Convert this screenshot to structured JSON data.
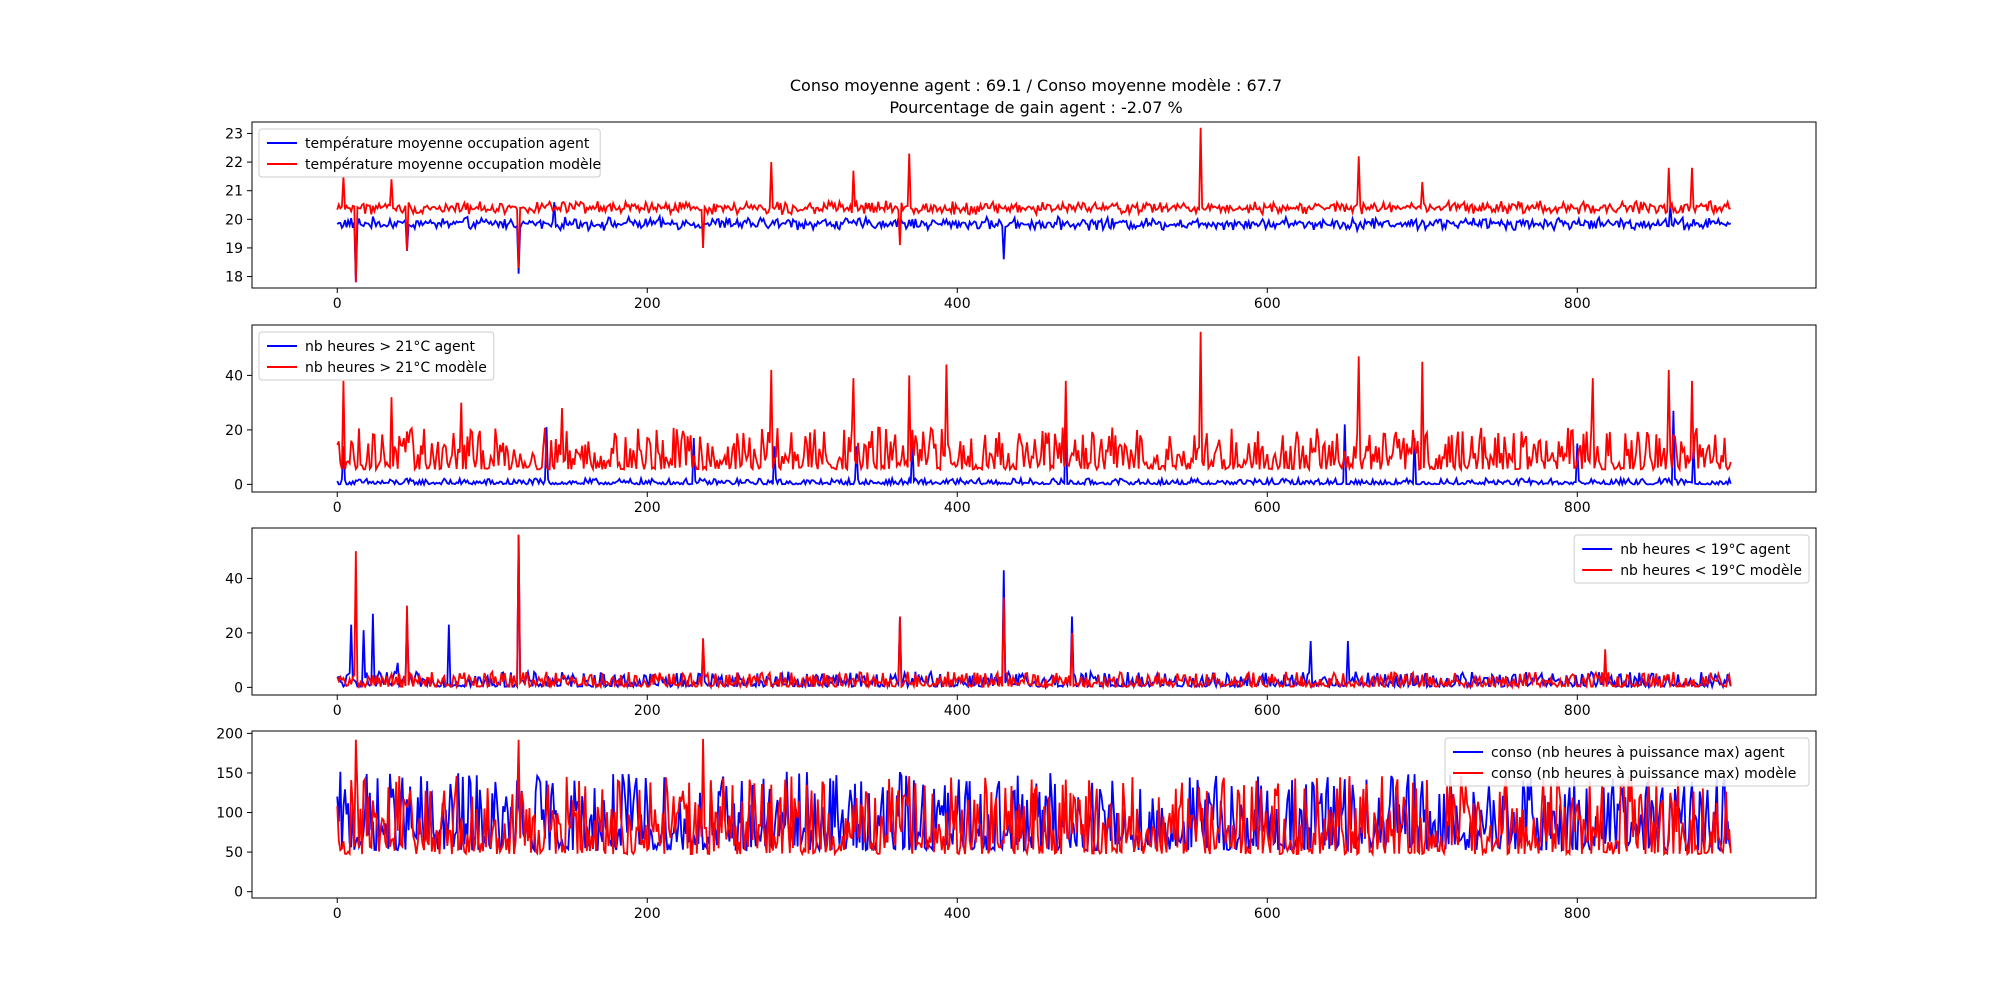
{
  "figure": {
    "title_line1": "Conso moyenne agent : 69.1 / Conso moyenne modèle : 67.7",
    "title_line2": "Pourcentage de gain agent : -2.07 %"
  },
  "colors": {
    "agent": "#0000ff",
    "modele": "#ff0000"
  },
  "chart_data": [
    {
      "type": "line",
      "x_range": [
        0,
        899
      ],
      "xlim": [
        -55,
        954
      ],
      "ylim": [
        17.6,
        23.4
      ],
      "xticks": [
        0,
        200,
        400,
        600,
        800
      ],
      "yticks": [
        18,
        19,
        20,
        21,
        22,
        23
      ],
      "legend_position": "upper-left",
      "series": [
        {
          "name": "température moyenne occupation agent",
          "color": "#0000ff",
          "base": 19.85,
          "noise": 0.25,
          "spikes": [
            [
              12,
              17.8
            ],
            [
              45,
              18.9
            ],
            [
              117,
              18.1
            ],
            [
              430,
              18.6
            ],
            [
              140,
              20.6
            ],
            [
              860,
              20.5
            ]
          ]
        },
        {
          "name": "température moyenne occupation modèle",
          "color": "#ff0000",
          "base": 20.4,
          "noise": 0.25,
          "spikes": [
            [
              4,
              21.5
            ],
            [
              12,
              17.8
            ],
            [
              35,
              21.4
            ],
            [
              45,
              18.9
            ],
            [
              117,
              18.3
            ],
            [
              236,
              19.0
            ],
            [
              280,
              22.0
            ],
            [
              333,
              21.7
            ],
            [
              363,
              19.1
            ],
            [
              369,
              22.3
            ],
            [
              557,
              23.2
            ],
            [
              659,
              22.2
            ],
            [
              700,
              21.3
            ],
            [
              859,
              21.8
            ],
            [
              874,
              21.8
            ]
          ]
        }
      ]
    },
    {
      "type": "line",
      "x_range": [
        0,
        899
      ],
      "xlim": [
        -55,
        954
      ],
      "ylim": [
        -2.8,
        58.5
      ],
      "xticks": [
        0,
        200,
        400,
        600,
        800
      ],
      "yticks": [
        0,
        20,
        40
      ],
      "legend_position": "upper-left",
      "series": [
        {
          "name": "nb heures > 21°C agent",
          "color": "#0000ff",
          "base": 0.5,
          "noise": 1.0,
          "spikes": [
            [
              4,
              14
            ],
            [
              135,
              21
            ],
            [
              230,
              17
            ],
            [
              282,
              14
            ],
            [
              335,
              14
            ],
            [
              371,
              17
            ],
            [
              470,
              22
            ],
            [
              650,
              22
            ],
            [
              695,
              17
            ],
            [
              800,
              15
            ],
            [
              862,
              27
            ],
            [
              875,
              15
            ]
          ]
        },
        {
          "name": "nb heures > 21°C modèle",
          "color": "#ff0000",
          "base": 9,
          "noise": 7,
          "spikes": [
            [
              4,
              38
            ],
            [
              35,
              32
            ],
            [
              80,
              30
            ],
            [
              145,
              28
            ],
            [
              280,
              42
            ],
            [
              333,
              39
            ],
            [
              369,
              40
            ],
            [
              393,
              44
            ],
            [
              470,
              38
            ],
            [
              557,
              56
            ],
            [
              659,
              47
            ],
            [
              700,
              45
            ],
            [
              810,
              39
            ],
            [
              859,
              42
            ],
            [
              874,
              38
            ]
          ]
        }
      ]
    },
    {
      "type": "line",
      "x_range": [
        0,
        899
      ],
      "xlim": [
        -55,
        954
      ],
      "ylim": [
        -2.8,
        58.5
      ],
      "xticks": [
        0,
        200,
        400,
        600,
        800
      ],
      "yticks": [
        0,
        20,
        40
      ],
      "legend_position": "upper-right",
      "series": [
        {
          "name": "nb heures < 19°C agent",
          "color": "#0000ff",
          "base": 1.5,
          "noise": 2.5,
          "spikes": [
            [
              9,
              23
            ],
            [
              17,
              21
            ],
            [
              23,
              27
            ],
            [
              39,
              9
            ],
            [
              45,
              26
            ],
            [
              72,
              23
            ],
            [
              117,
              56
            ],
            [
              236,
              15
            ],
            [
              363,
              26
            ],
            [
              430,
              43
            ],
            [
              474,
              26
            ],
            [
              628,
              17
            ],
            [
              652,
              17
            ]
          ]
        },
        {
          "name": "nb heures < 19°C modèle",
          "color": "#ff0000",
          "base": 1.5,
          "noise": 2.5,
          "spikes": [
            [
              12,
              50
            ],
            [
              45,
              30
            ],
            [
              117,
              56
            ],
            [
              236,
              18
            ],
            [
              363,
              26
            ],
            [
              430,
              33
            ],
            [
              474,
              20
            ],
            [
              818,
              14
            ]
          ]
        }
      ]
    },
    {
      "type": "line",
      "x_range": [
        0,
        899
      ],
      "xlim": [
        -55,
        954
      ],
      "ylim": [
        -8,
        203
      ],
      "xticks": [
        0,
        200,
        400,
        600,
        800
      ],
      "yticks": [
        0,
        50,
        100,
        150,
        200
      ],
      "legend_position": "upper-right",
      "series": [
        {
          "name": "conso (nb heures à puissance max) agent",
          "color": "#0000ff",
          "base": 75,
          "noise": 45,
          "spikes": []
        },
        {
          "name": "conso (nb heures à puissance max) modèle",
          "color": "#ff0000",
          "base": 70,
          "noise": 45,
          "spikes": [
            [
              12,
              192
            ],
            [
              117,
              192
            ],
            [
              236,
              193
            ],
            [
              0,
              108
            ]
          ]
        }
      ]
    }
  ]
}
